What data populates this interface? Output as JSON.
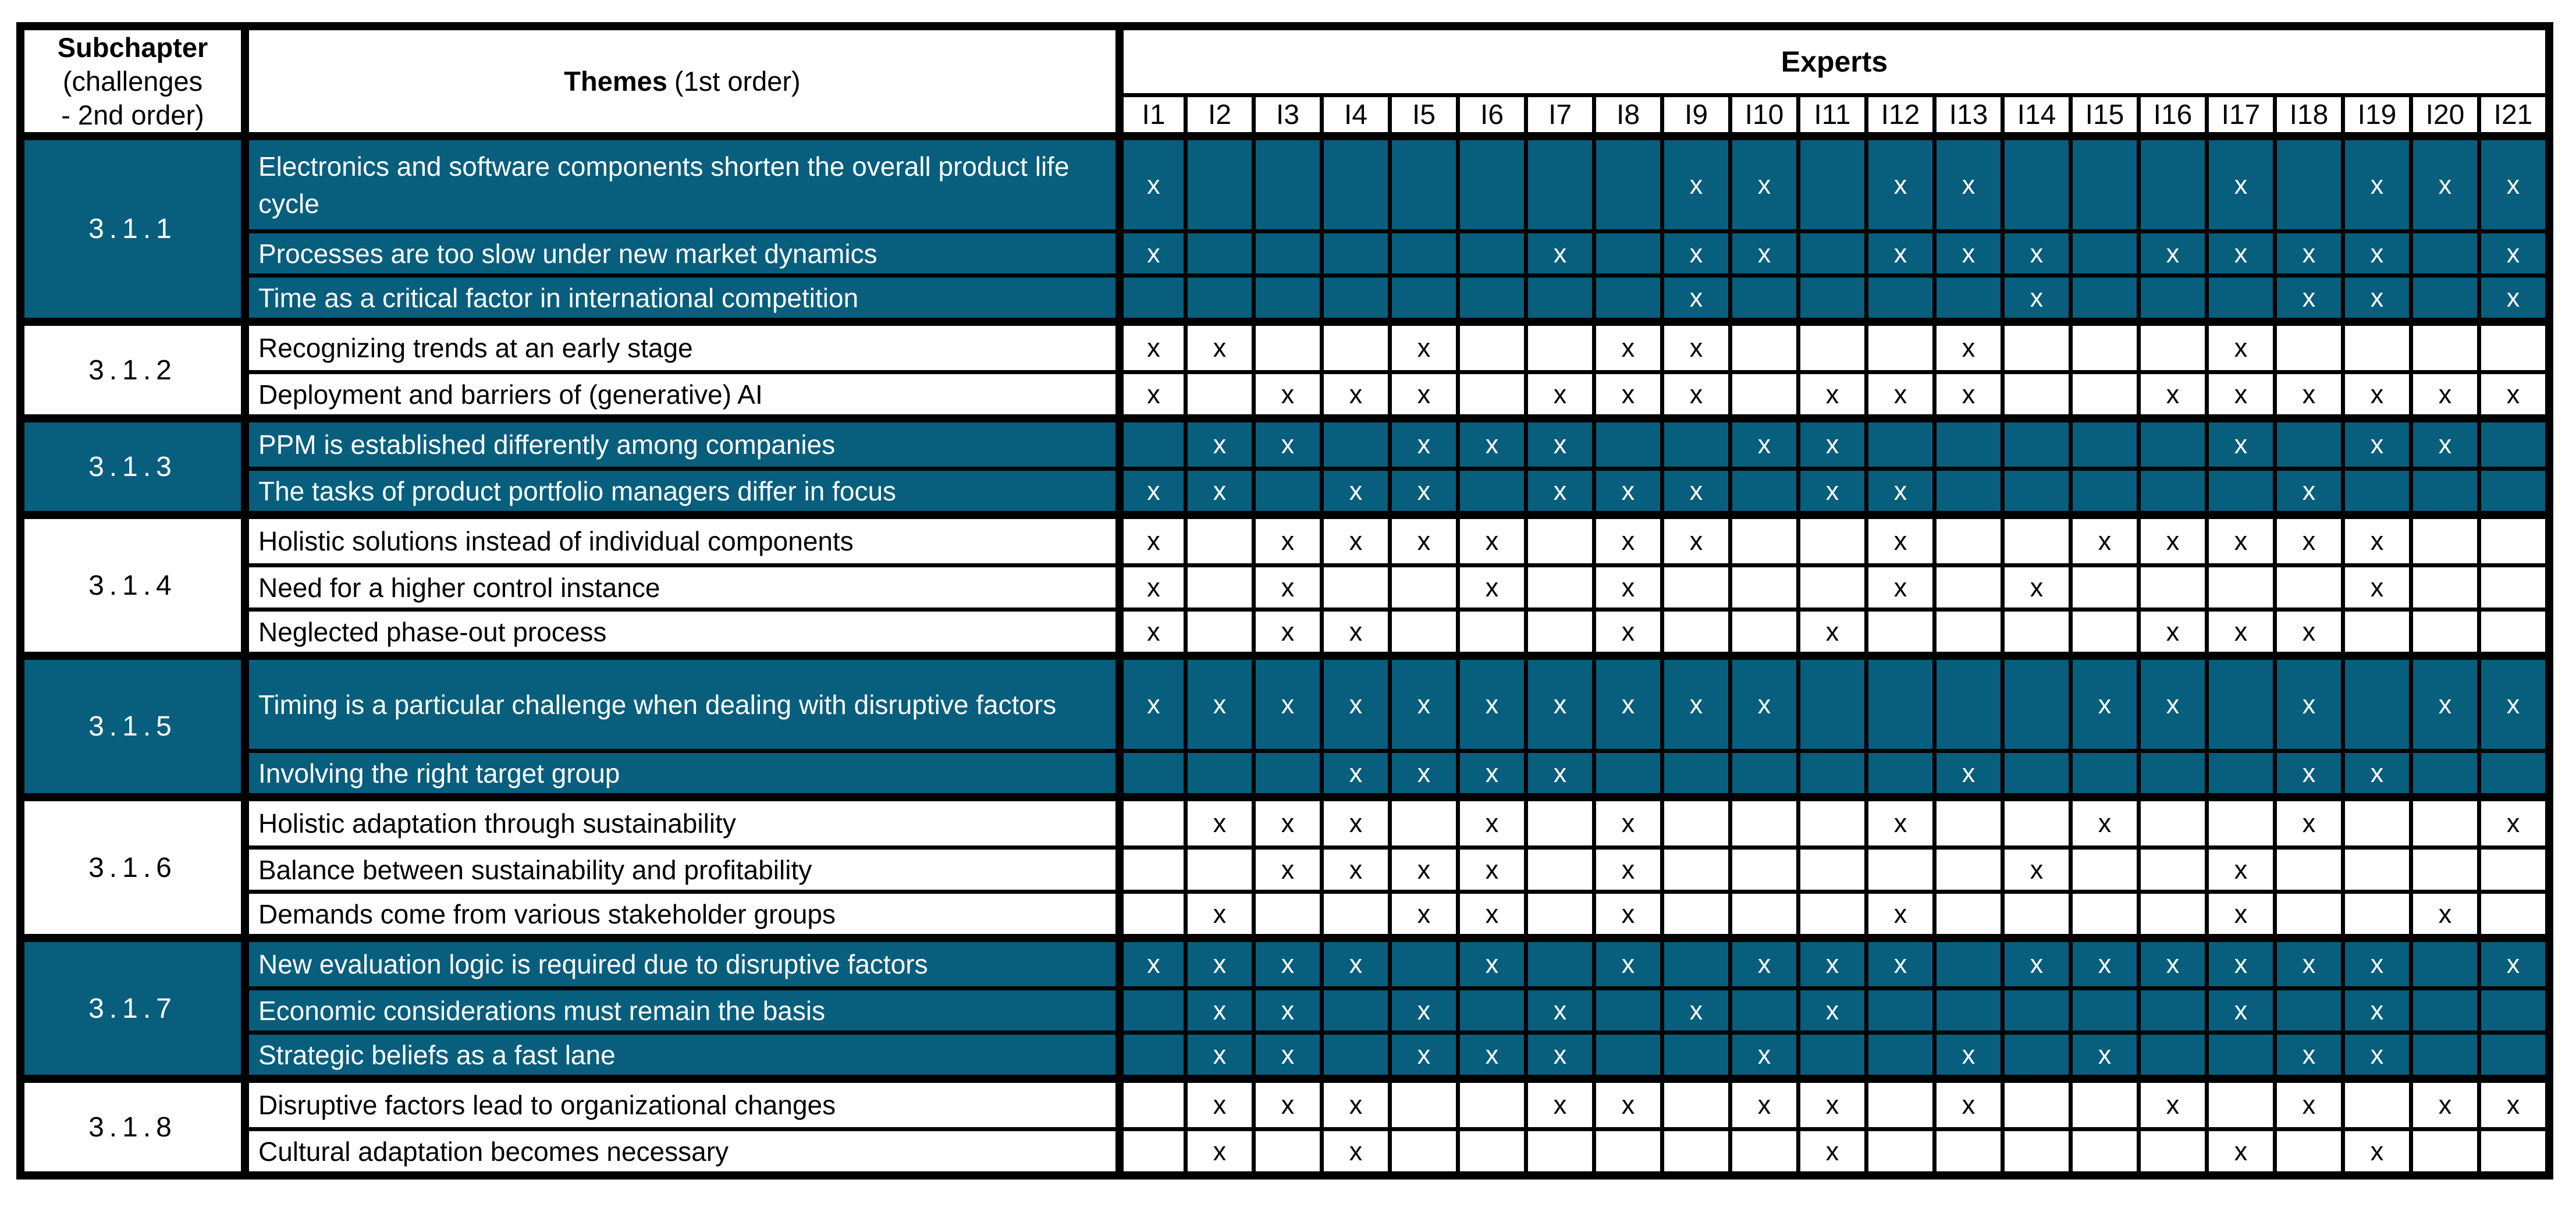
{
  "header": {
    "subchapter_bold": "Subchapter",
    "subchapter_line2": "(challenges",
    "subchapter_line3": "- 2nd order)",
    "themes_bold": "Themes",
    "themes_rest": "(1st order)",
    "experts_label": "Experts",
    "expert_columns": [
      "I1",
      "I2",
      "I3",
      "I4",
      "I5",
      "I6",
      "I7",
      "I8",
      "I9",
      "I10",
      "I11",
      "I12",
      "I13",
      "I14",
      "I15",
      "I16",
      "I17",
      "I18",
      "I19",
      "I20",
      "I21"
    ]
  },
  "colors": {
    "teal": "#075E7D",
    "grid_line": "#000000",
    "shaded_text": "#FFFFFF",
    "plain_text": "#000000"
  },
  "mark": "x",
  "groups": [
    {
      "id": "3.1.1",
      "shaded": true,
      "rows": [
        {
          "theme": "Electronics and software components shorten the overall product life cycle",
          "tall": true,
          "experts": [
            1,
            9,
            10,
            12,
            13,
            17,
            19,
            20,
            21
          ]
        },
        {
          "theme": "Processes are too slow under new market dynamics",
          "experts": [
            1,
            7,
            9,
            10,
            12,
            13,
            14,
            16,
            17,
            18,
            19,
            21
          ]
        },
        {
          "theme": "Time as a critical factor in international competition",
          "experts": [
            9,
            14,
            18,
            19,
            21
          ]
        }
      ]
    },
    {
      "id": "3.1.2",
      "shaded": false,
      "rows": [
        {
          "theme": "Recognizing trends at an early stage",
          "experts": [
            1,
            2,
            5,
            8,
            9,
            13,
            17
          ]
        },
        {
          "theme": "Deployment and barriers of (generative) AI",
          "experts": [
            1,
            3,
            4,
            5,
            7,
            8,
            9,
            11,
            12,
            13,
            16,
            17,
            18,
            19,
            20,
            21
          ]
        }
      ]
    },
    {
      "id": "3.1.3",
      "shaded": true,
      "rows": [
        {
          "theme": "PPM is established differently among companies",
          "experts": [
            2,
            3,
            5,
            6,
            7,
            10,
            11,
            17,
            19,
            20
          ]
        },
        {
          "theme": "The tasks of product portfolio managers differ in focus",
          "experts": [
            1,
            2,
            4,
            5,
            7,
            8,
            9,
            11,
            12,
            18
          ]
        }
      ]
    },
    {
      "id": "3.1.4",
      "shaded": false,
      "rows": [
        {
          "theme": "Holistic solutions instead of individual components",
          "experts": [
            1,
            3,
            4,
            5,
            6,
            8,
            9,
            12,
            15,
            16,
            17,
            18,
            19
          ]
        },
        {
          "theme": "Need for a higher control instance",
          "experts": [
            1,
            3,
            6,
            8,
            12,
            14,
            19
          ]
        },
        {
          "theme": "Neglected phase-out process",
          "experts": [
            1,
            3,
            4,
            8,
            11,
            16,
            17,
            18
          ]
        }
      ]
    },
    {
      "id": "3.1.5",
      "shaded": true,
      "rows": [
        {
          "theme": "Timing is a particular challenge when dealing with disruptive factors",
          "tall": true,
          "experts": [
            1,
            2,
            3,
            4,
            5,
            6,
            7,
            8,
            9,
            10,
            15,
            16,
            18,
            20,
            21
          ]
        },
        {
          "theme": "Involving the right target group",
          "experts": [
            4,
            5,
            6,
            7,
            13,
            18,
            19
          ]
        }
      ]
    },
    {
      "id": "3.1.6",
      "shaded": false,
      "rows": [
        {
          "theme": "Holistic adaptation through sustainability",
          "experts": [
            2,
            3,
            4,
            6,
            8,
            12,
            15,
            18,
            21
          ]
        },
        {
          "theme": "Balance between sustainability and profitability",
          "experts": [
            3,
            4,
            5,
            6,
            8,
            14,
            17
          ]
        },
        {
          "theme": "Demands come from various stakeholder groups",
          "experts": [
            2,
            5,
            6,
            8,
            12,
            17,
            20
          ]
        }
      ]
    },
    {
      "id": "3.1.7",
      "shaded": true,
      "rows": [
        {
          "theme": "New evaluation logic is required due to disruptive factors",
          "experts": [
            1,
            2,
            3,
            4,
            6,
            8,
            10,
            11,
            12,
            14,
            15,
            16,
            17,
            18,
            19,
            21
          ]
        },
        {
          "theme": "Economic considerations must remain the basis",
          "experts": [
            2,
            3,
            5,
            7,
            9,
            11,
            17,
            19
          ]
        },
        {
          "theme": "Strategic beliefs as a fast lane",
          "experts": [
            2,
            3,
            5,
            6,
            7,
            10,
            13,
            15,
            18,
            19
          ]
        }
      ]
    },
    {
      "id": "3.1.8",
      "shaded": false,
      "rows": [
        {
          "theme": "Disruptive factors lead to organizational changes",
          "experts": [
            2,
            3,
            4,
            7,
            8,
            10,
            11,
            13,
            16,
            18,
            20,
            21
          ]
        },
        {
          "theme": "Cultural adaptation becomes necessary",
          "experts": [
            2,
            4,
            11,
            17,
            19
          ]
        }
      ]
    }
  ]
}
